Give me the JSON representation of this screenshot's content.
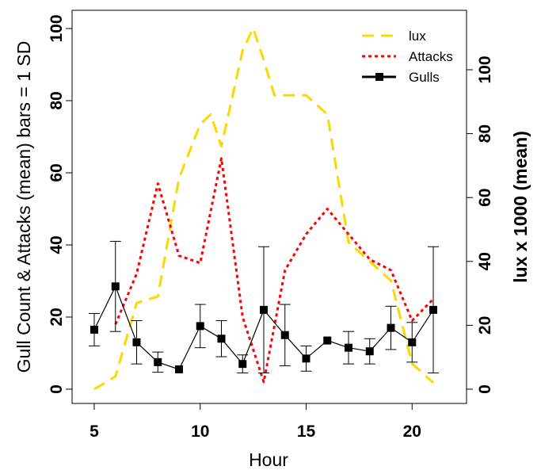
{
  "chart_data": {
    "type": "line",
    "xlabel": "Hour",
    "ylabel_left": "Gull Count & Attacks (mean) bars = 1 SD",
    "ylabel_right": "lux x 1000 (mean)",
    "xlim": [
      5,
      21
    ],
    "ylim_left": [
      0,
      100
    ],
    "ylim_right": [
      0,
      110
    ],
    "x_ticks": [
      "5",
      "10",
      "15",
      "20"
    ],
    "y_ticks_left": [
      "0",
      "20",
      "40",
      "60",
      "80",
      "100"
    ],
    "y_ticks_right": [
      "0",
      "20",
      "40",
      "60",
      "80",
      "100"
    ],
    "grid": false,
    "legend_position": "top-right",
    "series": [
      {
        "name": "lux",
        "axis": "right",
        "style": "dashed",
        "color": "#FFD700",
        "x": [
          5,
          6,
          7,
          8,
          9,
          10,
          10.5,
          11,
          12,
          12.5,
          13,
          13.5,
          14,
          15,
          16,
          17,
          18,
          19,
          20,
          21
        ],
        "y": [
          0,
          4,
          27,
          29,
          66,
          83,
          86,
          76,
          106,
          113,
          103,
          92,
          92,
          92,
          86,
          46,
          40,
          34,
          8,
          2
        ]
      },
      {
        "name": "Attacks",
        "axis": "left",
        "style": "dotted",
        "color": "#FF0000",
        "x": [
          6,
          7,
          8,
          9,
          10,
          11,
          12,
          13,
          14,
          15,
          16,
          17,
          18,
          19,
          20,
          21
        ],
        "y": [
          18,
          32,
          57,
          37,
          35,
          64,
          20,
          2,
          33,
          43,
          50,
          43,
          36,
          33,
          19,
          25
        ]
      },
      {
        "name": "Gulls",
        "axis": "left",
        "style": "solid-square-markers",
        "color": "#000000",
        "x": [
          5,
          6,
          7,
          8,
          9,
          10,
          11,
          12,
          13,
          14,
          15,
          16,
          17,
          18,
          19,
          20,
          21
        ],
        "y": [
          16.5,
          28.5,
          13,
          7.5,
          5.5,
          17.5,
          14,
          7,
          22,
          15,
          8.5,
          13.5,
          11.5,
          10.5,
          17,
          13,
          22
        ],
        "sd": [
          4.5,
          12.5,
          6,
          2.8,
          0,
          6,
          5,
          2.5,
          17.5,
          8.5,
          3.5,
          0,
          4.5,
          3.5,
          6,
          5.5,
          17.5
        ]
      }
    ]
  }
}
